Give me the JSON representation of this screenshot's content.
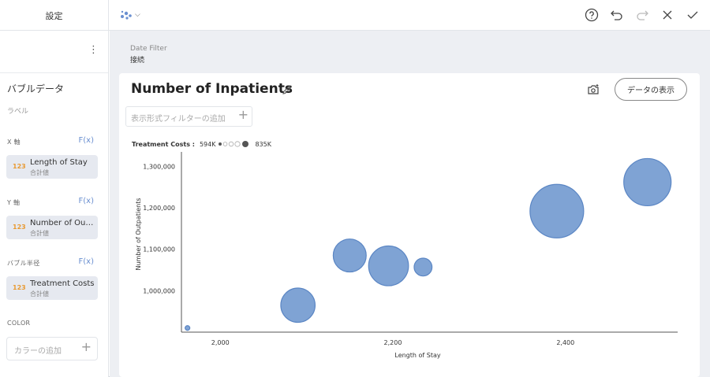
{
  "sidebar": {
    "settings_label": "設定",
    "chart_name": "バブルデータ",
    "label_section": "ラベル",
    "x_axis": {
      "heading": "X 軸",
      "fx": "F(x)",
      "field": "Length of Stay",
      "agg": "合計値",
      "type_badge": "123"
    },
    "y_axis": {
      "heading": "Y 軸",
      "fx": "F(x)",
      "field": "Number of Outpatients",
      "agg": "合計値",
      "type_badge": "123"
    },
    "radius": {
      "heading": "バブル半径",
      "fx": "F(x)",
      "field": "Treatment Costs",
      "agg": "合計値",
      "type_badge": "123"
    },
    "color": {
      "heading": "COLOR",
      "add_label": "カラーの追加"
    }
  },
  "toolbar": {
    "icons": [
      "help-icon",
      "undo-icon",
      "redo-icon",
      "close-icon",
      "check-icon"
    ],
    "viz_icon": "bubble-chart-icon"
  },
  "date_filter": {
    "label": "Date Filter",
    "value": "接続"
  },
  "card": {
    "title": "Number of Inpatients",
    "show_data_label": "データの表示",
    "filter_placeholder": "表示形式フィルターの追加"
  },
  "colors": {
    "bubble_fill": "#7fa3d4",
    "bubble_stroke": "#5b86c4",
    "accent": "#6a8fd0"
  },
  "chart_data": {
    "type": "scatter",
    "subtype": "bubble",
    "xlabel": "Length of Stay",
    "ylabel": "Number of Outpatients",
    "xticks": [
      2000,
      2200,
      2400
    ],
    "xtick_labels": [
      "2,000",
      "2,200",
      "2,400"
    ],
    "yticks": [
      1000000,
      1100000,
      1200000,
      1300000
    ],
    "ytick_labels": [
      "1,000,000",
      "1,100,000",
      "1,200,000",
      "1,300,000"
    ],
    "xlim": [
      1955,
      2530
    ],
    "ylim": [
      900000,
      1335000
    ],
    "size_legend": {
      "title": "Treatment Costs :",
      "min_label": "594K",
      "max_label": "835K"
    },
    "points": [
      {
        "x": 1962,
        "y": 910000,
        "size": 594
      },
      {
        "x": 2090,
        "y": 965000,
        "size": 770
      },
      {
        "x": 2150,
        "y": 1085000,
        "size": 765
      },
      {
        "x": 2195,
        "y": 1060000,
        "size": 790
      },
      {
        "x": 2235,
        "y": 1057000,
        "size": 700
      },
      {
        "x": 2390,
        "y": 1192000,
        "size": 835
      },
      {
        "x": 2495,
        "y": 1262000,
        "size": 815
      }
    ]
  }
}
